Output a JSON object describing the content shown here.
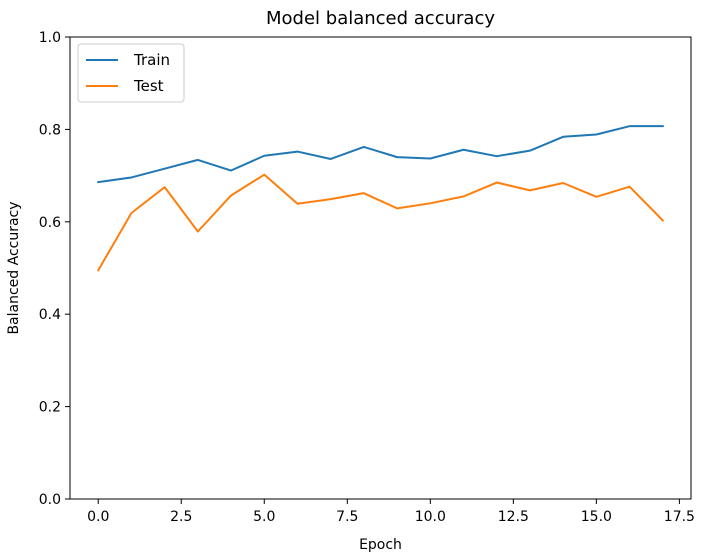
{
  "chart_data": {
    "type": "line",
    "title": "Model balanced accuracy",
    "xlabel": "Epoch",
    "ylabel": "Balanced Accuracy",
    "xlim": [
      -0.85,
      17.85
    ],
    "ylim": [
      0.0,
      1.0
    ],
    "xticks": [
      0.0,
      2.5,
      5.0,
      7.5,
      10.0,
      12.5,
      15.0,
      17.5
    ],
    "xtick_labels": [
      "0.0",
      "2.5",
      "5.0",
      "7.5",
      "10.0",
      "12.5",
      "15.0",
      "17.5"
    ],
    "yticks": [
      0.0,
      0.2,
      0.4,
      0.6,
      0.8,
      1.0
    ],
    "ytick_labels": [
      "0.0",
      "0.2",
      "0.4",
      "0.6",
      "0.8",
      "1.0"
    ],
    "grid": false,
    "legend_position": "upper-left",
    "x": [
      0,
      1,
      2,
      3,
      4,
      5,
      6,
      7,
      8,
      9,
      10,
      11,
      12,
      13,
      14,
      15,
      16,
      17
    ],
    "series": [
      {
        "name": "Train",
        "color": "#1f77b4",
        "values": [
          0.686,
          0.696,
          0.715,
          0.734,
          0.711,
          0.743,
          0.752,
          0.736,
          0.762,
          0.74,
          0.737,
          0.756,
          0.742,
          0.754,
          0.784,
          0.789,
          0.807,
          0.807
        ]
      },
      {
        "name": "Test",
        "color": "#ff7f0e",
        "values": [
          0.495,
          0.619,
          0.675,
          0.579,
          0.657,
          0.702,
          0.639,
          0.649,
          0.662,
          0.629,
          0.64,
          0.655,
          0.685,
          0.668,
          0.684,
          0.654,
          0.676,
          0.603
        ]
      }
    ]
  }
}
